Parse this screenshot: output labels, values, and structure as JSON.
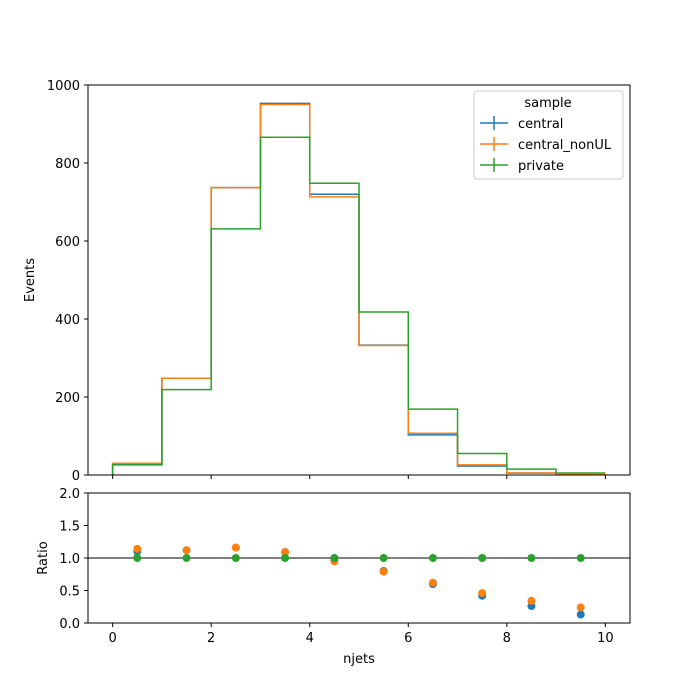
{
  "chart_data": [
    {
      "type": "step",
      "xlabel": "",
      "ylabel": "Events",
      "xlim": [
        -0.5,
        10.5
      ],
      "ylim": [
        0,
        1000
      ],
      "yticks": [
        "0",
        "200",
        "400",
        "600",
        "800",
        "1000"
      ],
      "xticks": [
        "0",
        "2",
        "4",
        "6",
        "8",
        "10"
      ],
      "bin_edges": [
        0,
        1,
        2,
        3,
        4,
        5,
        6,
        7,
        8,
        9,
        10
      ],
      "legend": {
        "title": "sample",
        "placement": "top-right"
      },
      "series": [
        {
          "name": "central",
          "color": "#1f77b4",
          "values": [
            28,
            248,
            737,
            953,
            720,
            333,
            103,
            23,
            5,
            1
          ]
        },
        {
          "name": "central_nonUL",
          "color": "#ff7f0e",
          "values": [
            30,
            248,
            737,
            950,
            713,
            332,
            107,
            26,
            5,
            1
          ]
        },
        {
          "name": "private",
          "color": "#2ca02c",
          "values": [
            26,
            219,
            631,
            866,
            748,
            418,
            169,
            55,
            15,
            5
          ]
        }
      ]
    },
    {
      "type": "scatter",
      "xlabel": "njets",
      "ylabel": "Ratio",
      "xlim": [
        -0.5,
        10.5
      ],
      "ylim": [
        0,
        2
      ],
      "yticks": [
        "0.0",
        "0.5",
        "1.0",
        "1.5",
        "2.0"
      ],
      "xticks": [
        "0",
        "2",
        "4",
        "6",
        "8",
        "10"
      ],
      "reference_line": 1.0,
      "x": [
        0.5,
        1.5,
        2.5,
        3.5,
        4.5,
        5.5,
        6.5,
        7.5,
        8.5,
        9.5
      ],
      "series": [
        {
          "name": "central",
          "color": "#1f77b4",
          "values": [
            1.1,
            1.12,
            1.16,
            1.09,
            0.96,
            0.8,
            0.6,
            0.42,
            0.26,
            0.13
          ]
        },
        {
          "name": "central_nonUL",
          "color": "#ff7f0e",
          "values": [
            1.14,
            1.12,
            1.16,
            1.09,
            0.95,
            0.79,
            0.62,
            0.46,
            0.34,
            0.24
          ]
        },
        {
          "name": "private",
          "color": "#2ca02c",
          "values": [
            1.0,
            1.0,
            1.0,
            1.0,
            1.0,
            1.0,
            1.0,
            1.0,
            1.0,
            1.0
          ]
        }
      ]
    }
  ]
}
